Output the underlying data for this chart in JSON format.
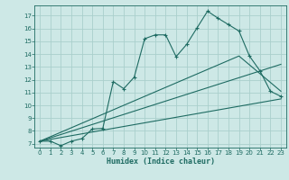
{
  "bg_color": "#cde8e6",
  "grid_color": "#aacfcc",
  "line_color": "#1e6b62",
  "xlabel": "Humidex (Indice chaleur)",
  "xlim": [
    -0.5,
    23.5
  ],
  "ylim": [
    6.7,
    17.8
  ],
  "yticks": [
    7,
    8,
    9,
    10,
    11,
    12,
    13,
    14,
    15,
    16,
    17
  ],
  "xticks": [
    0,
    1,
    2,
    3,
    4,
    5,
    6,
    7,
    8,
    9,
    10,
    11,
    12,
    13,
    14,
    15,
    16,
    17,
    18,
    19,
    20,
    21,
    22,
    23
  ],
  "line1_x": [
    0,
    1,
    2,
    3,
    4,
    5,
    6,
    7,
    8,
    9,
    10,
    11,
    12,
    13,
    14,
    15,
    16,
    17,
    18,
    19,
    20,
    21,
    22,
    23
  ],
  "line1_y": [
    7.2,
    7.2,
    6.85,
    7.2,
    7.4,
    8.15,
    8.2,
    11.85,
    11.3,
    12.2,
    15.2,
    15.5,
    15.5,
    13.8,
    14.75,
    16.05,
    17.35,
    16.8,
    16.3,
    15.8,
    13.85,
    12.7,
    11.1,
    10.7
  ],
  "line2_x": [
    0,
    23
  ],
  "line2_y": [
    7.2,
    13.2
  ],
  "line3_x": [
    0,
    19,
    23
  ],
  "line3_y": [
    7.2,
    13.85,
    11.1
  ],
  "line4_x": [
    0,
    23
  ],
  "line4_y": [
    7.2,
    10.5
  ]
}
